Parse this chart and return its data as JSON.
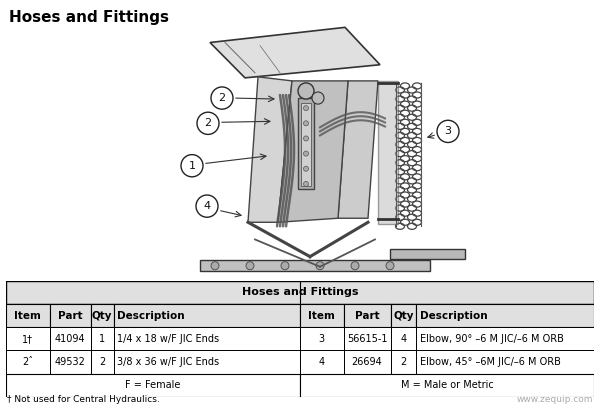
{
  "title": "Hoses and Fittings",
  "background_color": "#ffffff",
  "table_title": "Hoses and Fittings",
  "table_rows": [
    [
      "1†",
      "41094",
      "1",
      "1/4 x 18 w/F JIC Ends",
      "3",
      "56615-1",
      "4",
      "Elbow, 90° –6 M JIC/–6 M ORB"
    ],
    [
      "2ˆ",
      "49532",
      "2",
      "3/8 x 36 w/F JIC Ends",
      "4",
      "26694",
      "2",
      "Elbow, 45° –6M JIC/–6 M ORB"
    ]
  ],
  "table_footer_left": "F = Female",
  "table_footer_right": "M = Male or Metric",
  "footnote": "† Not used for Central Hydraulics.",
  "watermark": "www.zequip.com",
  "text_color": "#000000"
}
